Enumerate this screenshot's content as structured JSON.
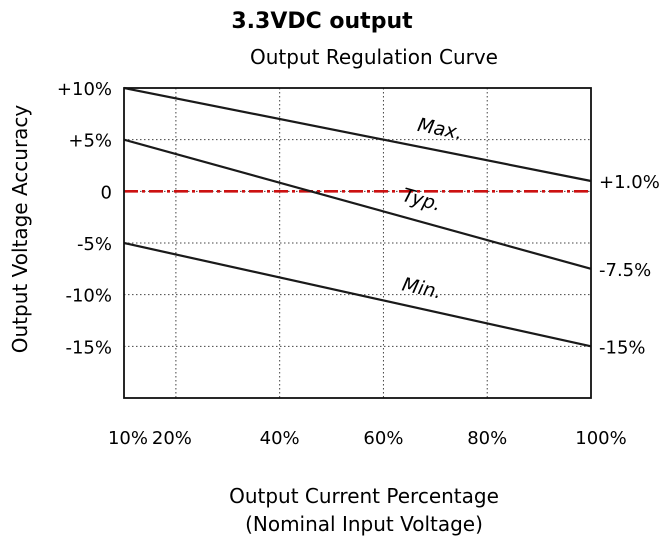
{
  "chart_data": {
    "type": "line",
    "title": "3.3VDC output",
    "subtitle": "Output Regulation Curve",
    "xlabel": "Output Current Percentage",
    "xlabel_note": "(Nominal Input Voltage)",
    "ylabel": "Output Voltage Accuracy",
    "xlim": [
      10,
      100
    ],
    "ylim": [
      -20,
      10
    ],
    "x_ticks": [
      10,
      20,
      40,
      60,
      80,
      100
    ],
    "x_tick_labels": [
      "10%",
      "20%",
      "40%",
      "60%",
      "80%",
      "100%"
    ],
    "y_ticks": [
      10,
      5,
      0,
      -5,
      -10,
      -15
    ],
    "y_tick_labels": [
      "+10%",
      "+5%",
      "0",
      "-5%",
      "-10%",
      "-15%"
    ],
    "grid": true,
    "series": [
      {
        "name": "Max.",
        "x": [
          10,
          100
        ],
        "y": [
          10,
          1.0
        ],
        "end_label": "+1.0%",
        "color": "#1a1a1a"
      },
      {
        "name": "Typ.",
        "x": [
          10,
          100
        ],
        "y": [
          5,
          -7.5
        ],
        "end_label": "-7.5%",
        "color": "#1a1a1a"
      },
      {
        "name": "Min.",
        "x": [
          10,
          100
        ],
        "y": [
          -5,
          -15
        ],
        "end_label": "-15%",
        "color": "#1a1a1a"
      }
    ],
    "reference_line": {
      "y": 0,
      "color": "#cc1111",
      "style": "dash-dot"
    }
  }
}
